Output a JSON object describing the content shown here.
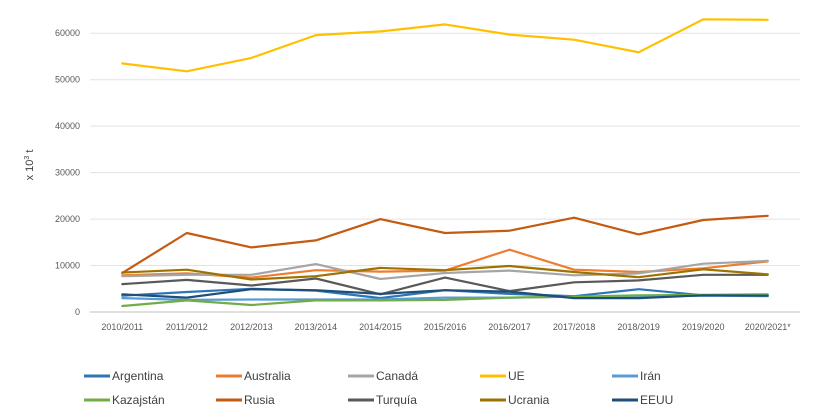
{
  "chart_data": {
    "type": "line",
    "title": "",
    "xlabel": "",
    "ylabel": "x 10",
    "ylabel_sup": "3",
    "ylabel_unit": " t",
    "ylim": [
      0,
      65000
    ],
    "yticks": [
      "0",
      "10000",
      "20000",
      "30000",
      "40000",
      "50000",
      "60000"
    ],
    "yticks_values": [
      0,
      10000,
      20000,
      30000,
      40000,
      50000,
      60000
    ],
    "grid": "horizontal",
    "legend_position": "bottom",
    "categories": [
      "2010/2011",
      "2011/2012",
      "2012/2013",
      "2013/2014",
      "2014/2015",
      "2015/2016",
      "2016/2017",
      "2017/2018",
      "2018/2019",
      "2019/2020",
      "2020/2021*"
    ],
    "series": [
      {
        "name": "Argentina",
        "color": "#2e75b6",
        "values": [
          3500,
          4300,
          5000,
          4600,
          3000,
          4700,
          3900,
          3400,
          4900,
          3600,
          3700
        ]
      },
      {
        "name": "Australia",
        "color": "#ed7d31",
        "values": [
          7900,
          8300,
          7400,
          9000,
          8700,
          8900,
          13400,
          9100,
          8600,
          9400,
          10900
        ]
      },
      {
        "name": "Canadá",
        "color": "#a5a5a5",
        "values": [
          7700,
          8000,
          8000,
          10300,
          7100,
          8400,
          8900,
          7900,
          8300,
          10400,
          11000
        ]
      },
      {
        "name": "UE",
        "color": "#ffc000",
        "values": [
          53500,
          51800,
          54700,
          59600,
          60400,
          61900,
          59700,
          58600,
          55900,
          63000,
          62900
        ]
      },
      {
        "name": "Irán",
        "color": "#5b9bd5",
        "values": [
          3000,
          2600,
          2700,
          2700,
          2700,
          3100,
          3100,
          3300,
          3300,
          3500,
          3400
        ]
      },
      {
        "name": "Kazajstán",
        "color": "#70ad47",
        "values": [
          1300,
          2500,
          1500,
          2500,
          2500,
          2600,
          3100,
          3300,
          3600,
          3700,
          3800
        ]
      },
      {
        "name": "Rusia",
        "color": "#c55a11",
        "values": [
          8400,
          17000,
          13900,
          15400,
          20000,
          17000,
          17500,
          20300,
          16700,
          19800,
          20700
        ]
      },
      {
        "name": "Turquía",
        "color": "#595959",
        "values": [
          6000,
          6900,
          5700,
          7200,
          3800,
          7400,
          4500,
          6400,
          6800,
          8000,
          8000
        ]
      },
      {
        "name": "Ucrania",
        "color": "#9e7200",
        "values": [
          8500,
          9100,
          7000,
          7700,
          9500,
          9000,
          9900,
          8600,
          7500,
          9200,
          8100
        ]
      },
      {
        "name": "EEUU",
        "color": "#1f4e79",
        "values": [
          3800,
          3100,
          4900,
          4700,
          3900,
          4700,
          4400,
          3000,
          3000,
          3600,
          3500
        ]
      }
    ]
  }
}
